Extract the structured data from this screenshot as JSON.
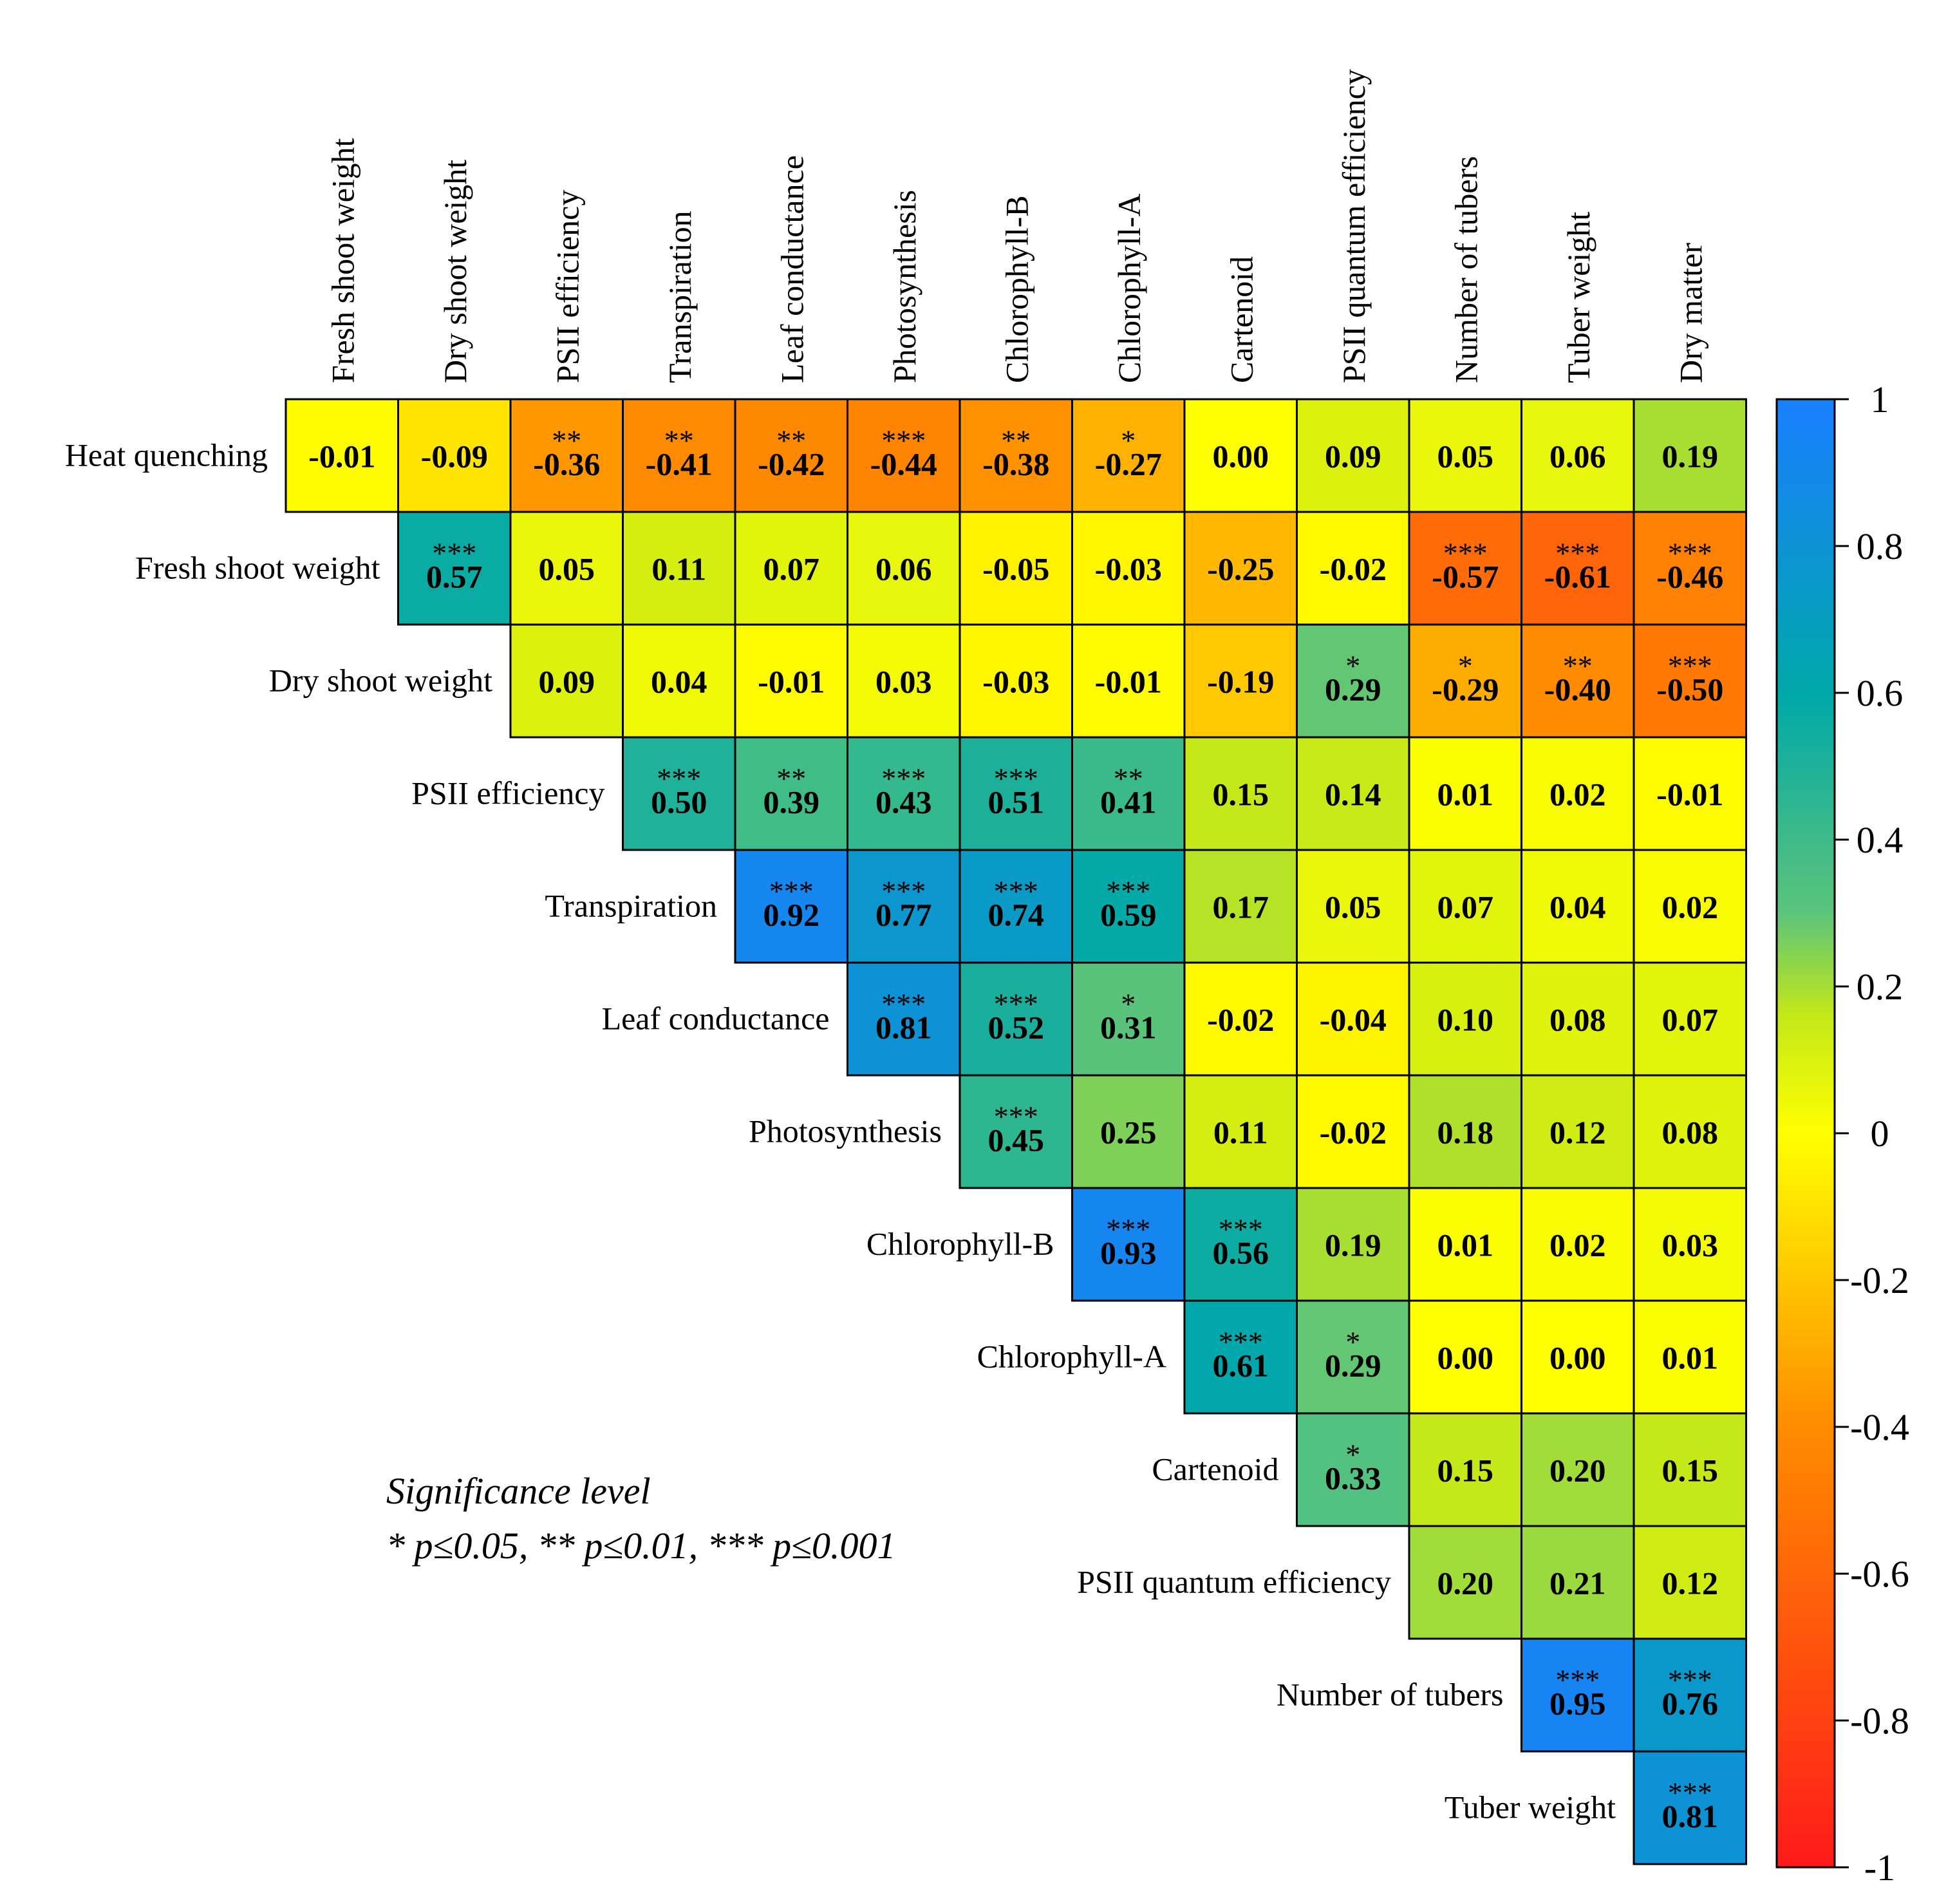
{
  "chart_data": {
    "type": "heatmap",
    "title": "",
    "rows": [
      "Heat quenching",
      "Fresh shoot weight",
      "Dry shoot weight",
      "PSII efficiency",
      "Transpiration",
      "Leaf conductance",
      "Photosynthesis",
      "Chlorophyll-B",
      "Chlorophyll-A",
      "Cartenoid",
      "PSII quantum efficiency",
      "Number of tubers",
      "Tuber weight"
    ],
    "columns": [
      "Fresh shoot weight",
      "Dry shoot weight",
      "PSII efficiency",
      "Transpiration",
      "Leaf conductance",
      "Photosynthesis",
      "Chlorophyll-B",
      "Chlorophyll-A",
      "Cartenoid",
      "PSII quantum efficiency",
      "Number of tubers",
      "Tuber weight",
      "Dry matter"
    ],
    "values": [
      [
        "-0.01",
        "-0.09",
        "-0.36",
        "-0.41",
        "-0.42",
        "-0.44",
        "-0.38",
        "-0.27",
        "0.00",
        "0.09",
        "0.05",
        "0.06",
        "0.19"
      ],
      [
        "0.57",
        "0.05",
        "0.11",
        "0.07",
        "0.06",
        "-0.05",
        "-0.03",
        "-0.25",
        "-0.02",
        "-0.57",
        "-0.61",
        "-0.46"
      ],
      [
        "0.09",
        "0.04",
        "-0.01",
        "0.03",
        "-0.03",
        "-0.01",
        "-0.19",
        "0.29",
        "-0.29",
        "-0.40",
        "-0.50"
      ],
      [
        "0.50",
        "0.39",
        "0.43",
        "0.51",
        "0.41",
        "0.15",
        "0.14",
        "0.01",
        "0.02",
        "-0.01"
      ],
      [
        "0.92",
        "0.77",
        "0.74",
        "0.59",
        "0.17",
        "0.05",
        "0.07",
        "0.04",
        "0.02"
      ],
      [
        "0.81",
        "0.52",
        "0.31",
        "-0.02",
        "-0.04",
        "0.10",
        "0.08",
        "0.07"
      ],
      [
        "0.45",
        "0.25",
        "0.11",
        "-0.02",
        "0.18",
        "0.12",
        "0.08"
      ],
      [
        "0.93",
        "0.56",
        "0.19",
        "0.01",
        "0.02",
        "0.03"
      ],
      [
        "0.61",
        "0.29",
        "0.00",
        "0.00",
        "0.01"
      ],
      [
        "0.33",
        "0.15",
        "0.20",
        "0.15"
      ],
      [
        "0.20",
        "0.21",
        "0.12"
      ],
      [
        "0.95",
        "0.76"
      ],
      [
        "0.81"
      ]
    ],
    "significance": [
      [
        "",
        "",
        "**",
        "**",
        "**",
        "***",
        "**",
        "*",
        "",
        "",
        "",
        "",
        ""
      ],
      [
        "***",
        "",
        "",
        "",
        "",
        "",
        "",
        "",
        "",
        "***",
        "***",
        "***"
      ],
      [
        "",
        "",
        "",
        "",
        "",
        "",
        "",
        "*",
        "*",
        "**",
        "***"
      ],
      [
        "***",
        "**",
        "***",
        "***",
        "**",
        "",
        "",
        "",
        "",
        ""
      ],
      [
        "***",
        "***",
        "***",
        "***",
        "",
        "",
        "",
        "",
        ""
      ],
      [
        "***",
        "***",
        "*",
        "",
        "",
        "",
        "",
        ""
      ],
      [
        "***",
        "",
        "",
        "",
        "",
        "",
        ""
      ],
      [
        "***",
        "***",
        "",
        "",
        "",
        ""
      ],
      [
        "***",
        "*",
        "",
        "",
        ""
      ],
      [
        "*",
        "",
        "",
        ""
      ],
      [
        "",
        "",
        ""
      ],
      [
        "***",
        "***"
      ],
      [
        "***"
      ]
    ],
    "colorbar": {
      "range": [
        -1,
        1
      ],
      "ticks": [
        "1",
        "0.8",
        "0.6",
        "0.4",
        "0.2",
        "0",
        "-0.2",
        "-0.4",
        "-0.6",
        "-0.8",
        "-1"
      ],
      "colors": {
        "neg1": "#ff1a1a",
        "negMid": "#ff8c00",
        "zero": "#ffff00",
        "posLow": "#c4e818",
        "posMid": "#5cc47a",
        "posHigh": "#00a8a8",
        "pos1": "#1a7fff"
      }
    },
    "legend": {
      "title": "Significance level",
      "text": "* p≤0.05, ** p≤0.01, *** p≤0.001"
    }
  }
}
